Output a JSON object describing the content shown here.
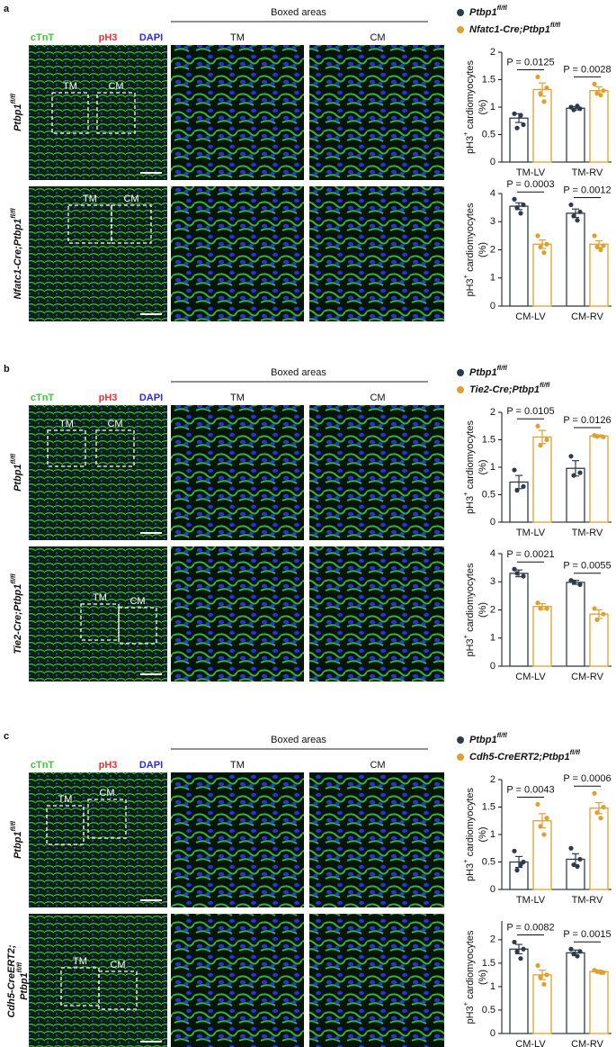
{
  "panels": [
    {
      "label": "a",
      "stains": [
        "cTnT",
        "pH3",
        "DAPI"
      ],
      "boxed_title": "Boxed areas",
      "columns": [
        "TM",
        "CM"
      ],
      "box_labels": [
        "TM",
        "CM"
      ],
      "rows": [
        {
          "text": "Ptbp1",
          "sup": "fl/fl"
        },
        {
          "text": "Nfatc1-Cre;Ptbp1",
          "sup": "fl/fl"
        }
      ],
      "chart_data": [
        {
          "type": "bar",
          "ylabel": {
            "text": "pH3",
            "sup": "+",
            "rest": " cardiomyocytes",
            "line2": "(%)"
          },
          "categories": [
            "TM-LV",
            "TM-RV"
          ],
          "ylim": [
            0,
            2
          ],
          "yticks": [
            0,
            0.5,
            1,
            1.5,
            2
          ],
          "p_values": [
            "P = 0.0125",
            "P = 0.0028"
          ],
          "series": [
            {
              "name": {
                "text": "Ptbp1",
                "sup": "fl/fl"
              },
              "color": "#2f3b4c",
              "values": [
                0.8,
                0.98
              ],
              "errors": [
                0.08,
                0.03
              ],
              "points": [
                [
                  0.88,
                  0.68,
                  0.62,
                  0.85
                ],
                [
                  1.0,
                  0.97,
                  0.95,
                  1.02
                ]
              ]
            },
            {
              "name": {
                "text": "Nfatc1-Cre;Ptbp1",
                "sup": "fl/fl"
              },
              "color": "#e0a030",
              "values": [
                1.32,
                1.3
              ],
              "errors": [
                0.12,
                0.07
              ],
              "points": [
                [
                  1.55,
                  1.35,
                  1.25,
                  1.1
                ],
                [
                  1.42,
                  1.3,
                  1.25,
                  1.22
                ]
              ]
            }
          ]
        },
        {
          "type": "bar",
          "ylabel": {
            "text": "pH3",
            "sup": "+",
            "rest": " cardiomyocytes",
            "line2": "(%)"
          },
          "categories": [
            "CM-LV",
            "CM-RV"
          ],
          "ylim": [
            0,
            4
          ],
          "yticks": [
            0,
            1,
            2,
            3,
            4
          ],
          "p_values": [
            "P = 0.0003",
            "P = 0.0012"
          ],
          "series": [
            {
              "color": "#2f3b4c",
              "values": [
                3.55,
                3.3
              ],
              "errors": [
                0.12,
                0.15
              ],
              "points": [
                [
                  3.8,
                  3.6,
                  3.5,
                  3.3
                ],
                [
                  3.6,
                  3.35,
                  3.2,
                  3.05
                ]
              ]
            },
            {
              "color": "#e0a030",
              "values": [
                2.2,
                2.2
              ],
              "errors": [
                0.15,
                0.12
              ],
              "points": [
                [
                  2.5,
                  2.2,
                  2.1,
                  1.9
                ],
                [
                  2.5,
                  2.15,
                  2.1,
                  2.0
                ]
              ]
            }
          ]
        }
      ]
    },
    {
      "label": "b",
      "stains": [
        "cTnT",
        "pH3",
        "DAPI"
      ],
      "boxed_title": "Boxed areas",
      "columns": [
        "TM",
        "CM"
      ],
      "box_labels": [
        "TM",
        "CM"
      ],
      "rows": [
        {
          "text": "Ptbp1",
          "sup": "fl/fl"
        },
        {
          "text": "Tie2-Cre;Ptbp1",
          "sup": "fl/fl"
        }
      ],
      "chart_data": [
        {
          "type": "bar",
          "ylabel": {
            "text": "pH3",
            "sup": "+",
            "rest": " cardiomyocytes",
            "line2": "(%)"
          },
          "categories": [
            "TM-LV",
            "TM-RV"
          ],
          "ylim": [
            0,
            2
          ],
          "yticks": [
            0,
            0.5,
            1,
            1.5,
            2
          ],
          "p_values": [
            "P = 0.0105",
            "P = 0.0126"
          ],
          "series": [
            {
              "name": {
                "text": "Ptbp1",
                "sup": "fl/fl"
              },
              "color": "#2f3b4c",
              "values": [
                0.73,
                0.98
              ],
              "errors": [
                0.12,
                0.14
              ],
              "points": [
                [
                  0.95,
                  0.65,
                  0.58
                ],
                [
                  1.2,
                  0.9,
                  0.85
                ]
              ]
            },
            {
              "name": {
                "text": "Tie2-Cre;Ptbp1",
                "sup": "fl/fl"
              },
              "color": "#e0a030",
              "values": [
                1.55,
                1.57
              ],
              "errors": [
                0.12,
                0.02
              ],
              "points": [
                [
                  1.75,
                  1.5,
                  1.4
                ],
                [
                  1.58,
                  1.55,
                  1.56
                ]
              ]
            }
          ]
        },
        {
          "type": "bar",
          "ylabel": {
            "text": "pH3",
            "sup": "+",
            "rest": " cardiomyocytes",
            "line2": "(%)"
          },
          "categories": [
            "CM-LV",
            "CM-RV"
          ],
          "ylim": [
            0,
            4
          ],
          "yticks": [
            0,
            1,
            2,
            3,
            4
          ],
          "p_values": [
            "P = 0.0021",
            "P = 0.0055"
          ],
          "series": [
            {
              "color": "#2f3b4c",
              "values": [
                3.3,
                2.98
              ],
              "errors": [
                0.12,
                0.07
              ],
              "points": [
                [
                  3.45,
                  3.2,
                  3.3
                ],
                [
                  3.05,
                  2.9,
                  3.0
                ]
              ]
            },
            {
              "color": "#e0a030",
              "values": [
                2.12,
                1.85
              ],
              "errors": [
                0.1,
                0.15
              ],
              "points": [
                [
                  2.25,
                  2.05,
                  2.05
                ],
                [
                  2.05,
                  1.85,
                  1.65
                ]
              ]
            }
          ]
        }
      ]
    },
    {
      "label": "c",
      "stains": [
        "cTnT",
        "pH3",
        "DAPI"
      ],
      "boxed_title": "Boxed areas",
      "columns": [
        "TM",
        "CM"
      ],
      "box_labels": [
        "TM",
        "CM"
      ],
      "rows": [
        {
          "text": "Ptbp1",
          "sup": "fl/fl"
        },
        {
          "text": "Cdh5-CreERT2;",
          "text2": "Ptbp1",
          "sup": "fl/fl"
        }
      ],
      "chart_data": [
        {
          "type": "bar",
          "ylabel": {
            "text": "pH3",
            "sup": "+",
            "rest": " cardiomyocytes",
            "line2": "(%)"
          },
          "categories": [
            "TM-LV",
            "TM-RV"
          ],
          "ylim": [
            0,
            2
          ],
          "yticks": [
            0,
            0.5,
            1,
            1.5,
            2
          ],
          "p_values": [
            "P = 0.0043",
            "P = 0.0006"
          ],
          "series": [
            {
              "name": {
                "text": "Ptbp1",
                "sup": "fl/fl"
              },
              "color": "#2f3b4c",
              "values": [
                0.5,
                0.55
              ],
              "errors": [
                0.1,
                0.1
              ],
              "points": [
                [
                  0.7,
                  0.5,
                  0.35,
                  0.45
                ],
                [
                  0.75,
                  0.55,
                  0.45,
                  0.42
                ]
              ]
            },
            {
              "name": {
                "text": "Cdh5-CreERT2;Ptbp1",
                "sup": "fl/fl"
              },
              "color": "#e0a030",
              "values": [
                1.25,
                1.48
              ],
              "errors": [
                0.13,
                0.1
              ],
              "points": [
                [
                  1.55,
                  1.3,
                  1.15,
                  1.0
                ],
                [
                  1.75,
                  1.5,
                  1.4,
                  1.3
                ]
              ]
            }
          ]
        },
        {
          "type": "bar",
          "ylabel": {
            "text": "pH3",
            "sup": "+",
            "rest": " cardiomyocytes",
            "line2": "(%)"
          },
          "categories": [
            "CM-LV",
            "CM-RV"
          ],
          "ylim": [
            0,
            2.4
          ],
          "yticks": [
            0,
            0.5,
            1,
            1.5,
            2
          ],
          "p_values": [
            "P = 0.0082",
            "P = 0.0015"
          ],
          "series": [
            {
              "color": "#2f3b4c",
              "values": [
                1.8,
                1.72
              ],
              "errors": [
                0.1,
                0.06
              ],
              "points": [
                [
                  1.95,
                  1.8,
                  1.75,
                  1.6
                ],
                [
                  1.8,
                  1.75,
                  1.7,
                  1.65
                ]
              ]
            },
            {
              "color": "#e0a030",
              "values": [
                1.25,
                1.32
              ],
              "errors": [
                0.1,
                0.03
              ],
              "points": [
                [
                  1.45,
                  1.25,
                  1.2,
                  1.05
                ],
                [
                  1.35,
                  1.3,
                  1.32,
                  1.3
                ]
              ]
            }
          ]
        }
      ]
    }
  ]
}
